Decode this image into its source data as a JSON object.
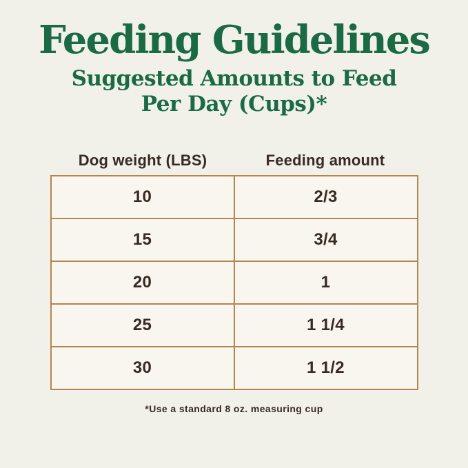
{
  "page": {
    "title": "Feeding Guidelines",
    "subtitle_line1": "Suggested Amounts to Feed",
    "subtitle_line2": "Per Day (Cups)*",
    "footnote": "*Use a standard 8 oz. measuring cup"
  },
  "colors": {
    "page_background": "#f2f1e9",
    "cell_background": "#f8f6ee",
    "title_green": "#1a6a44",
    "table_border": "#b5854f",
    "text_dark": "#362a22"
  },
  "chart_data": {
    "type": "table",
    "title": "Feeding Guidelines",
    "subtitle": "Suggested Amounts to Feed Per Day (Cups)*",
    "columns": [
      "Dog weight (LBS)",
      "Feeding amount"
    ],
    "rows": [
      [
        "10",
        "2/3"
      ],
      [
        "15",
        "3/4"
      ],
      [
        "20",
        "1"
      ],
      [
        "25",
        "1 1/4"
      ],
      [
        "30",
        "1 1/2"
      ]
    ],
    "footnote": "*Use a standard 8 oz. measuring cup"
  }
}
